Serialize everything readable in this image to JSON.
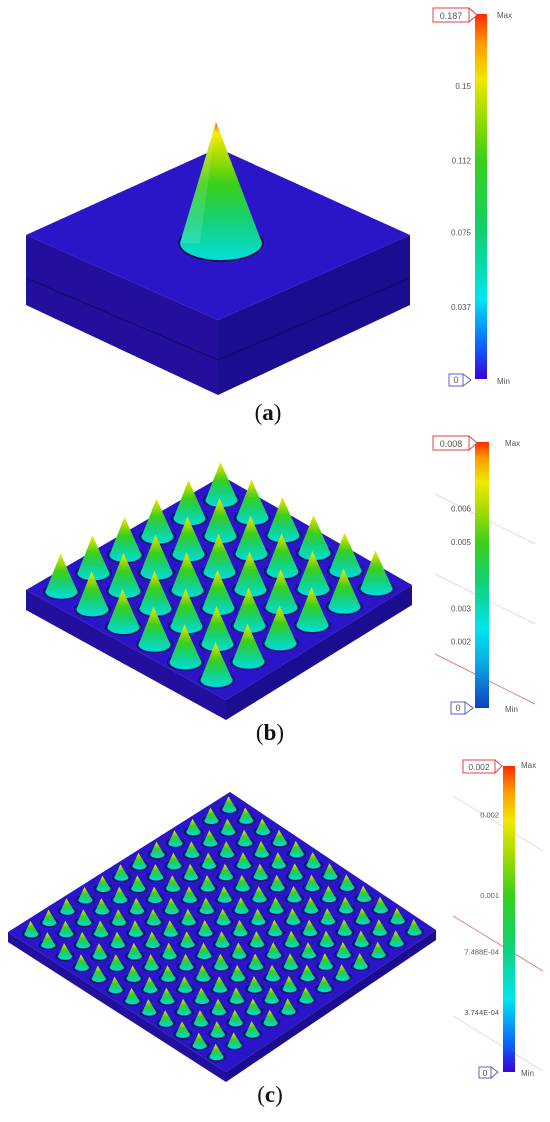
{
  "panels": [
    {
      "id": "a",
      "caption_open": "(",
      "caption_letter": "a",
      "caption_close": ")",
      "grid": 1,
      "legend": {
        "max_box": "0.187",
        "max_word": "Max",
        "min_box": "0",
        "min_word": "Min",
        "ticks": [
          "0.15",
          "0.112",
          "0.075",
          "0.037"
        ],
        "tick_values": [
          0.15,
          0.112,
          0.075,
          0.037
        ],
        "max_value": 0.187,
        "min_value": 0
      }
    },
    {
      "id": "b",
      "caption_open": "(",
      "caption_letter": "b",
      "caption_close": ")",
      "grid": 6,
      "legend": {
        "max_box": "0.008",
        "max_word": "Max",
        "min_box": "0",
        "min_word": "Min",
        "ticks": [
          "0.006",
          "0.005",
          "0.003",
          "0.002"
        ],
        "tick_values": [
          0.006,
          0.005,
          0.003,
          0.002
        ],
        "max_value": 0.008,
        "min_value": 0
      }
    },
    {
      "id": "c",
      "caption_open": "(",
      "caption_letter": "c",
      "caption_close": ")",
      "grid": 12,
      "legend": {
        "max_box": "0.002",
        "max_word": "Max",
        "min_box": "0",
        "min_word": "Min",
        "ticks": [
          "0.002",
          "0.001",
          "7.488E-04",
          "3.744E-04"
        ],
        "tick_values": [
          0.0016,
          0.0011,
          0.000749,
          0.000374
        ],
        "max_value": 0.0019,
        "min_value": 0
      }
    }
  ],
  "colors": {
    "base_top": "#2a15c8",
    "base_side": "#1c0e94",
    "base_front": "#24119f",
    "scale": [
      "#3300dd",
      "#0b6bff",
      "#00e6ee",
      "#10d070",
      "#3ad01a",
      "#9add00",
      "#f0e800",
      "#ff9a00",
      "#ff2a00"
    ],
    "box_stroke": "#d44",
    "min_stroke": "#5560d8"
  }
}
